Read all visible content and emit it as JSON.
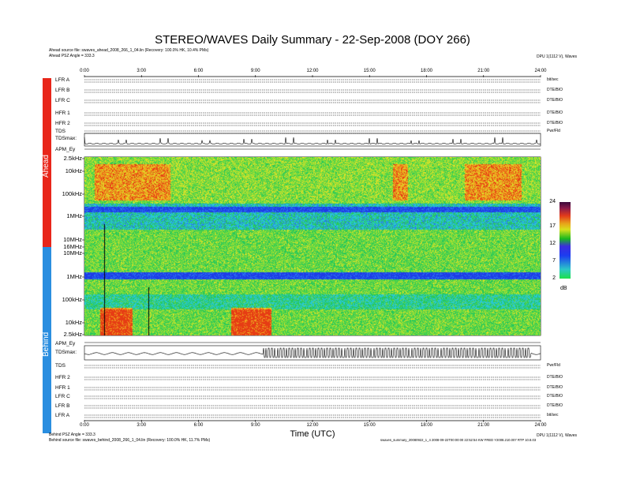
{
  "title": "STEREO/WAVES Daily Summary - 22-Sep-2008 (DOY 266)",
  "header": {
    "ahead_source": "Ahead source file: swaves_ahead_2008_266_1_04.lin (Recovery: 100.0% HK, 10.4% PMs)",
    "ahead_angle": "Ahead PSZ Angle = 333.3",
    "right_top": "DPU 1(1112 V), Waves"
  },
  "footer": {
    "behind_angle": "Behind PSZ Angle = 333.3",
    "behind_source": "Behind source file: swaves_behind_2008_266_1_04.lin (Recovery: 100.0% HK, 11.7% PMs)",
    "right_bottom_1": "DPU 1(1112 V), Waves",
    "right_bottom_2": "swaves_summary_20080922_1_4 2008-09-22T00:00:00 22:52:54 KW FRED Y2008.210.007 RTP 10.8.03"
  },
  "side_labels": {
    "ahead": "Ahead",
    "behind": "Behind"
  },
  "colors": {
    "ahead": "#e8261a",
    "behind": "#2a8ee0"
  },
  "time_ticks": [
    "0:00",
    "3:00",
    "6:00",
    "9:00",
    "12:00",
    "15:00",
    "18:00",
    "21:00",
    "24:00"
  ],
  "xlabel": "Time (UTC)",
  "ahead_panels": [
    {
      "name": "LFR A",
      "unit": "bit/sec"
    },
    {
      "name": "LFR B",
      "unit": "DTE/BIO"
    },
    {
      "name": "LFR C",
      "unit": "DTE/BIO"
    },
    {
      "name": "HFR 1",
      "unit": "DTE/BIO"
    },
    {
      "name": "HFR 2",
      "unit": "DTE/BIO"
    },
    {
      "name": "TDS",
      "unit": "Pwr/Fld"
    }
  ],
  "behind_panels": [
    {
      "name": "TDS",
      "unit": "Pwr/Fld"
    },
    {
      "name": "HFR 2",
      "unit": "DTE/BIO"
    },
    {
      "name": "HFR 1",
      "unit": "DTE/BIO"
    },
    {
      "name": "LFR C",
      "unit": "DTE/BIO"
    },
    {
      "name": "LFR B",
      "unit": "DTE/BIO"
    },
    {
      "name": "LFR A",
      "unit": "bit/sec"
    }
  ],
  "labels": {
    "tdsmax_ahead": "TDSmax:",
    "apm_ey_ahead": "APM_Ey",
    "tdsmax_behind": "TDSmax:",
    "apm_ey_behind": "APM_Ey",
    "dB": "dB"
  },
  "chart_data": {
    "type": "heatmap",
    "title": "STEREO/WAVES Daily Summary - 22-Sep-2008 (DOY 266)",
    "xlabel": "Time (UTC)",
    "x_range": [
      "0:00",
      "24:00"
    ],
    "x_ticks": [
      "0:00",
      "3:00",
      "6:00",
      "9:00",
      "12:00",
      "15:00",
      "18:00",
      "21:00",
      "24:00"
    ],
    "ahead_freq_ticks": [
      "2.5kHz",
      "10kHz",
      "100kHz",
      "1MHz",
      "10MHz",
      "16MHz"
    ],
    "behind_freq_ticks": [
      "10MHz",
      "1MHz",
      "100kHz",
      "10kHz",
      "2.5kHz"
    ],
    "colorbar": {
      "label": "dB",
      "min": 2,
      "max": 24,
      "ticks": [
        2,
        7,
        12,
        17,
        24
      ]
    },
    "intensity_regions": [
      {
        "spacecraft": "Ahead",
        "start_hr": 0.5,
        "end_hr": 4.5,
        "level": "elevated",
        "band": "10kHz-100kHz"
      },
      {
        "spacecraft": "Ahead",
        "start_hr": 16.2,
        "end_hr": 17.0,
        "level": "elevated",
        "band": "10kHz-100kHz"
      },
      {
        "spacecraft": "Ahead",
        "start_hr": 20.0,
        "end_hr": 23.0,
        "level": "elevated",
        "band": "10kHz-100kHz"
      },
      {
        "spacecraft": "Behind",
        "start_hr": 0.8,
        "end_hr": 2.5,
        "level": "high",
        "band": "2.5kHz-10kHz"
      },
      {
        "spacecraft": "Behind",
        "start_hr": 7.7,
        "end_hr": 9.8,
        "level": "high",
        "band": "2.5kHz-10kHz"
      }
    ]
  }
}
